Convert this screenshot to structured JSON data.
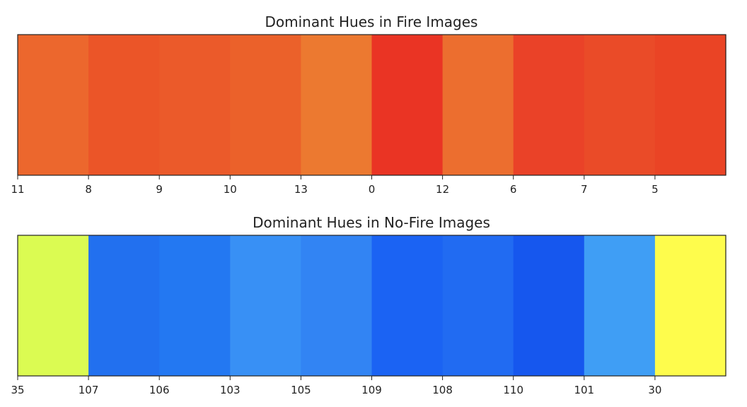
{
  "chart_data": [
    {
      "type": "heatmap",
      "title": "Dominant Hues in Fire Images",
      "xlabel": "",
      "ylabel": "",
      "categories": [
        "11",
        "8",
        "9",
        "10",
        "13",
        "0",
        "12",
        "6",
        "7",
        "5"
      ],
      "colors": [
        "#ec672d",
        "#eb5528",
        "#eb5a2a",
        "#eb612a",
        "#ec7930",
        "#ea3424",
        "#ec6e2f",
        "#ea4228",
        "#ea4b28",
        "#ea4425"
      ],
      "grid": false
    },
    {
      "type": "heatmap",
      "title": "Dominant Hues in No-Fire Images",
      "xlabel": "",
      "ylabel": "",
      "categories": [
        "35",
        "107",
        "106",
        "103",
        "105",
        "109",
        "108",
        "110",
        "101",
        "30"
      ],
      "colors": [
        "#dbfb52",
        "#2270ef",
        "#2378f2",
        "#3890f5",
        "#3284f3",
        "#1b63f3",
        "#216bf2",
        "#1657ee",
        "#3f9ef5",
        "#fefc4c"
      ],
      "grid": false
    }
  ]
}
